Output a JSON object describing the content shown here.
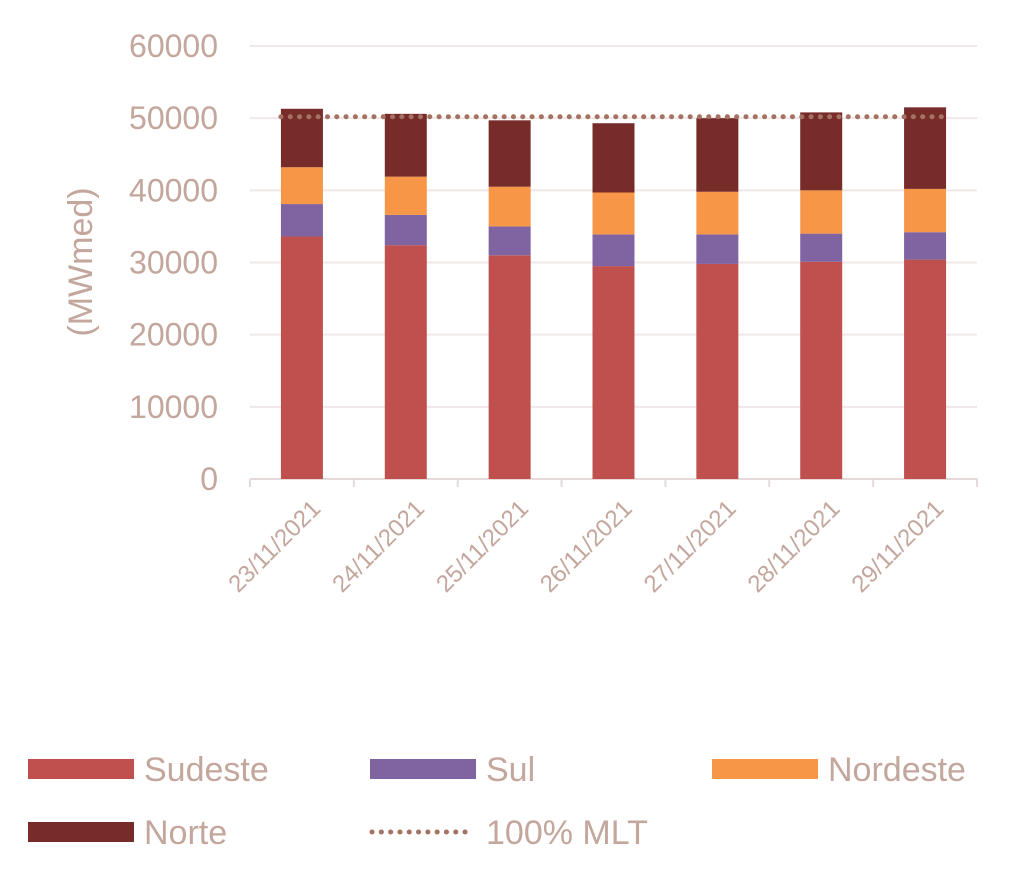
{
  "colors": {
    "text": "#c3a69c",
    "grid": "#f1e7e7",
    "axis": "#e6d9d9",
    "mlt_line": "#a37262"
  },
  "chart_data": {
    "type": "bar",
    "stacked": true,
    "title": "",
    "xlabel": "",
    "ylabel": "(MWmed)",
    "ylim": [
      0,
      60000
    ],
    "yticks": [
      0,
      10000,
      20000,
      30000,
      40000,
      50000,
      60000
    ],
    "grid": true,
    "legend_position": "bottom",
    "categories": [
      "23/11/2021",
      "24/11/2021",
      "25/11/2021",
      "26/11/2021",
      "27/11/2021",
      "28/11/2021",
      "29/11/2021"
    ],
    "series": [
      {
        "name": "Sudeste",
        "color": "#c0504d",
        "values": [
          33600,
          32400,
          31000,
          29500,
          29800,
          30100,
          30400
        ]
      },
      {
        "name": "Sul",
        "color": "#8064a2",
        "values": [
          4500,
          4200,
          4000,
          4400,
          4100,
          3900,
          3800
        ]
      },
      {
        "name": "Nordeste",
        "color": "#f79646",
        "values": [
          5100,
          5300,
          5500,
          5800,
          5900,
          6000,
          6000
        ]
      },
      {
        "name": "Norte",
        "color": "#772c2a",
        "values": [
          8100,
          8700,
          9200,
          9600,
          10200,
          10800,
          11300
        ]
      }
    ],
    "line": {
      "name": "100% MLT",
      "style": "dotted",
      "values": [
        50200,
        50200,
        50200,
        50200,
        50200,
        50200,
        50200
      ]
    }
  }
}
